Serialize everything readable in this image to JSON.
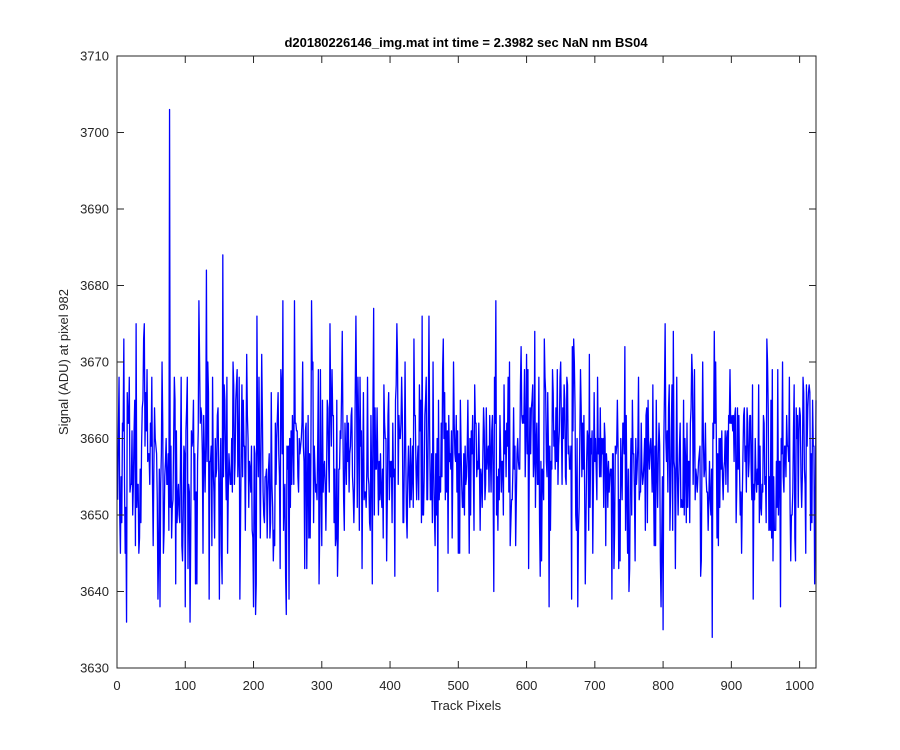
{
  "chart_data": {
    "type": "line",
    "title": "d20180226146_img.mat int time = 2.3982 sec  NaN nm BS04",
    "xlabel": "Track Pixels",
    "ylabel": "Signal (ADU) at pixel 982",
    "xlim": [
      0,
      1024
    ],
    "ylim": [
      3630,
      3710
    ],
    "xticks": [
      "0",
      "100",
      "200",
      "300",
      "400",
      "500",
      "600",
      "700",
      "800",
      "900",
      "1000"
    ],
    "yticks": [
      "3630",
      "3640",
      "3650",
      "3660",
      "3670",
      "3680",
      "3690",
      "3700",
      "3710"
    ],
    "grid": false,
    "legend": "none",
    "line_color": "#0000ff",
    "axis_color": "#262626",
    "series": [
      {
        "x_start": 1,
        "x_step": 1,
        "count": 1024,
        "baseline_mean": 3657,
        "noise_std": 6.5,
        "highlighted_points": [
          [
            1,
            3652
          ],
          [
            5,
            3645
          ],
          [
            8,
            3662
          ],
          [
            10,
            3673
          ],
          [
            12,
            3645
          ],
          [
            14,
            3636
          ],
          [
            18,
            3668
          ],
          [
            23,
            3650
          ],
          [
            28,
            3675
          ],
          [
            32,
            3645
          ],
          [
            38,
            3665
          ],
          [
            40,
            3675
          ],
          [
            50,
            3659
          ],
          [
            56,
            3660
          ],
          [
            60,
            3639
          ],
          [
            63,
            3638
          ],
          [
            66,
            3670
          ],
          [
            70,
            3655
          ],
          [
            77,
            3703
          ],
          [
            82,
            3652
          ],
          [
            86,
            3641
          ],
          [
            94,
            3668
          ],
          [
            100,
            3638
          ],
          [
            107,
            3636
          ],
          [
            112,
            3665
          ],
          [
            120,
            3678
          ],
          [
            126,
            3645
          ],
          [
            131,
            3682
          ],
          [
            135,
            3639
          ],
          [
            140,
            3668
          ],
          [
            150,
            3639
          ],
          [
            155,
            3684
          ],
          [
            162,
            3645
          ],
          [
            170,
            3670
          ],
          [
            180,
            3639
          ],
          [
            185,
            3665
          ],
          [
            190,
            3671
          ],
          [
            200,
            3638
          ],
          [
            203,
            3637
          ],
          [
            205,
            3676
          ],
          [
            215,
            3650
          ],
          [
            225,
            3649
          ],
          [
            240,
            3669
          ],
          [
            243,
            3678
          ],
          [
            248,
            3637
          ],
          [
            252,
            3639
          ],
          [
            260,
            3678
          ],
          [
            265,
            3655
          ],
          [
            285,
            3678
          ],
          [
            300,
            3646
          ],
          [
            312,
            3675
          ],
          [
            320,
            3646
          ],
          [
            350,
            3676
          ],
          [
            359,
            3643
          ],
          [
            376,
            3677
          ],
          [
            395,
            3644
          ],
          [
            410,
            3675
          ],
          [
            435,
            3673
          ],
          [
            447,
            3676
          ],
          [
            457,
            3676
          ],
          [
            465,
            3650
          ],
          [
            470,
            3640
          ],
          [
            478,
            3673
          ],
          [
            493,
            3670
          ],
          [
            500,
            3645
          ],
          [
            516,
            3645
          ],
          [
            523,
            3648
          ],
          [
            540,
            3654
          ],
          [
            552,
            3640
          ],
          [
            555,
            3678
          ],
          [
            575,
            3670
          ],
          [
            597,
            3669
          ],
          [
            620,
            3642
          ],
          [
            633,
            3638
          ],
          [
            650,
            3670
          ],
          [
            666,
            3639
          ],
          [
            667,
            3672
          ],
          [
            675,
            3638
          ],
          [
            679,
            3669
          ],
          [
            690,
            3660
          ],
          [
            725,
            3639
          ],
          [
            735,
            3643
          ],
          [
            745,
            3648
          ],
          [
            750,
            3640
          ],
          [
            763,
            3659
          ],
          [
            797,
            3638
          ],
          [
            800,
            3635
          ],
          [
            803,
            3675
          ],
          [
            820,
            3668
          ],
          [
            835,
            3662
          ],
          [
            855,
            3642
          ],
          [
            872,
            3634
          ],
          [
            875,
            3674
          ],
          [
            877,
            3670
          ],
          [
            900,
            3662
          ],
          [
            932,
            3639
          ],
          [
            955,
            3648
          ],
          [
            972,
            3638
          ],
          [
            975,
            3670
          ],
          [
            982,
            3659
          ],
          [
            985,
            3668
          ],
          [
            1010,
            3667
          ],
          [
            1016,
            3648
          ],
          [
            1019,
            3665
          ],
          [
            1022,
            3641
          ],
          [
            1024,
            3665
          ]
        ]
      }
    ]
  }
}
